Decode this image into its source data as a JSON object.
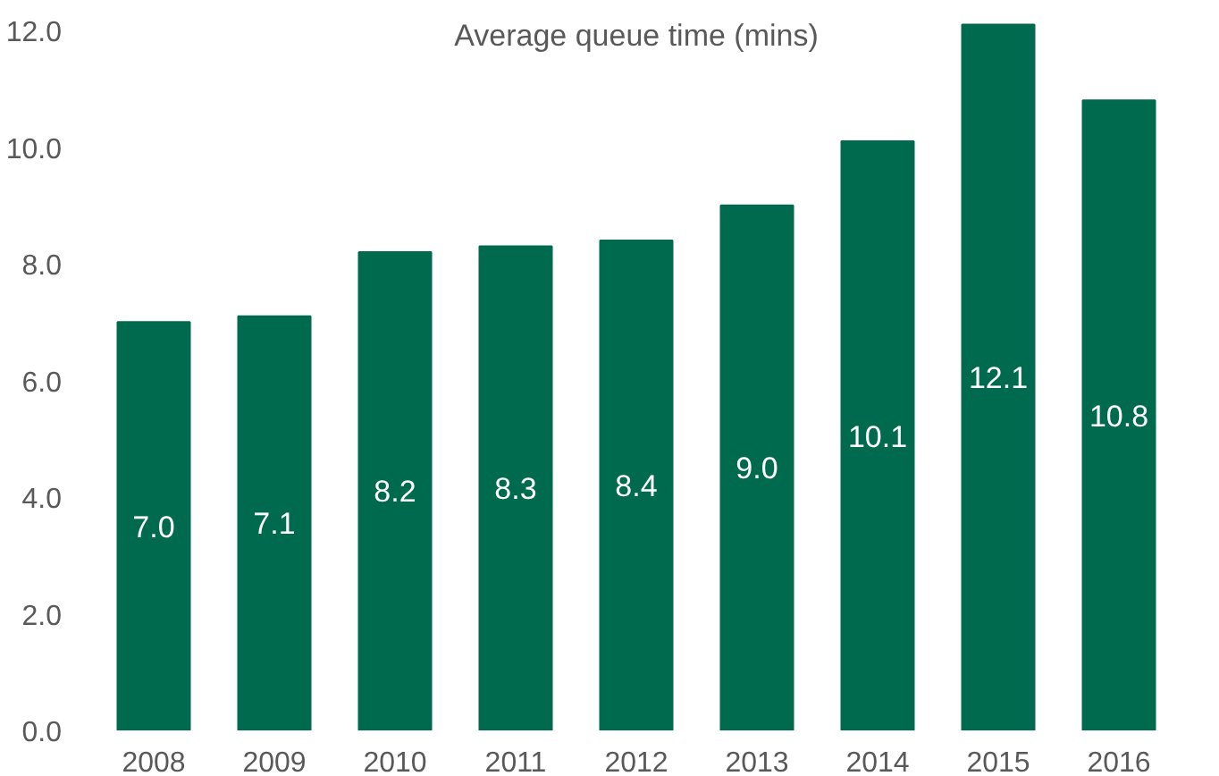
{
  "chart_data": {
    "type": "bar",
    "title": "Average queue time (mins)",
    "categories": [
      "2008",
      "2009",
      "2010",
      "2011",
      "2012",
      "2013",
      "2014",
      "2015",
      "2016"
    ],
    "values": [
      7.0,
      7.1,
      8.2,
      8.3,
      8.4,
      9.0,
      10.1,
      12.1,
      10.8
    ],
    "value_labels": [
      "7.0",
      "7.1",
      "8.2",
      "8.3",
      "8.4",
      "9.0",
      "10.1",
      "12.1",
      "10.8"
    ],
    "color": "#006a4e",
    "ylim": [
      0,
      12.2
    ],
    "yticks": [
      {
        "value": 0,
        "label": "0.0"
      },
      {
        "value": 2,
        "label": "2.0"
      },
      {
        "value": 4,
        "label": "4.0"
      },
      {
        "value": 6,
        "label": "6.0"
      },
      {
        "value": 8,
        "label": "8.0"
      },
      {
        "value": 10,
        "label": "10.0"
      },
      {
        "value": 12,
        "label": "12.0"
      }
    ],
    "grid": false
  }
}
